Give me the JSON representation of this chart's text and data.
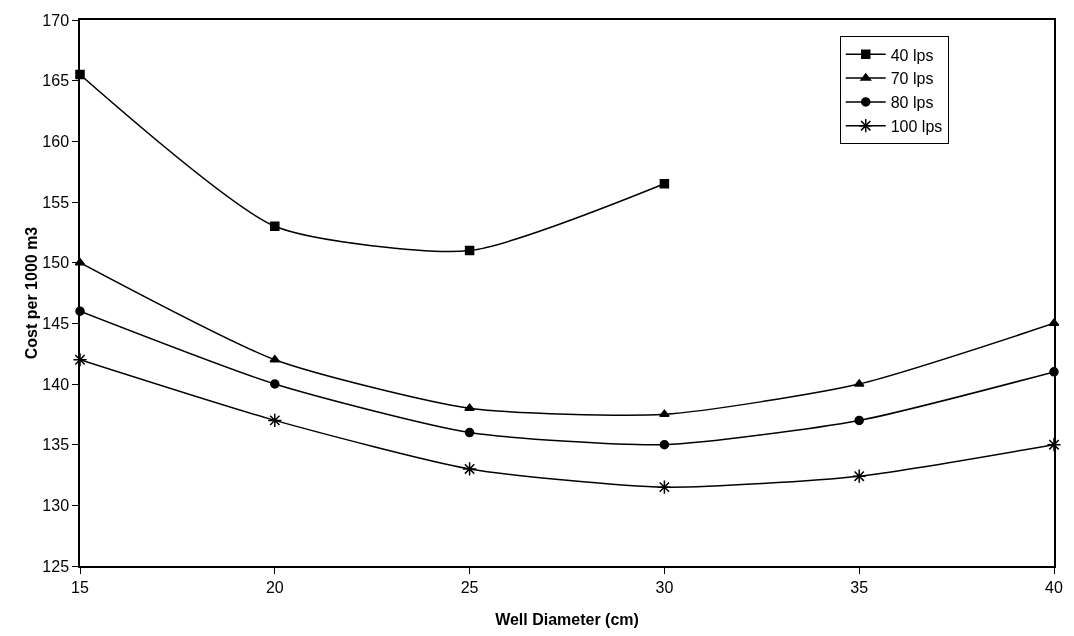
{
  "chart_data": {
    "type": "line",
    "xlabel": "Well Diameter (cm)",
    "ylabel": "Cost per 1000 m3",
    "x": [
      15,
      20,
      25,
      30,
      35,
      40
    ],
    "series": [
      {
        "name": "40 lps",
        "color": "#000000",
        "marker": "square",
        "values": [
          165.5,
          153,
          151,
          156.5,
          null,
          null
        ]
      },
      {
        "name": "70 lps",
        "color": "#000000",
        "marker": "triangle",
        "values": [
          150,
          142,
          138,
          137.5,
          140,
          145
        ]
      },
      {
        "name": "80 lps",
        "color": "#000000",
        "marker": "circle",
        "values": [
          146,
          140,
          136,
          135,
          137,
          141
        ]
      },
      {
        "name": "100 lps",
        "color": "#000000",
        "marker": "cross",
        "values": [
          142,
          137,
          133,
          131.5,
          132.4,
          135
        ]
      }
    ],
    "xlim": [
      15,
      40
    ],
    "xticks": [
      15,
      20,
      25,
      30,
      35,
      40
    ],
    "ylim": [
      125,
      170
    ],
    "yticks": [
      125,
      130,
      135,
      140,
      145,
      150,
      155,
      160,
      165,
      170
    ],
    "grid": false,
    "legend": "top right",
    "line_style": "solid"
  }
}
